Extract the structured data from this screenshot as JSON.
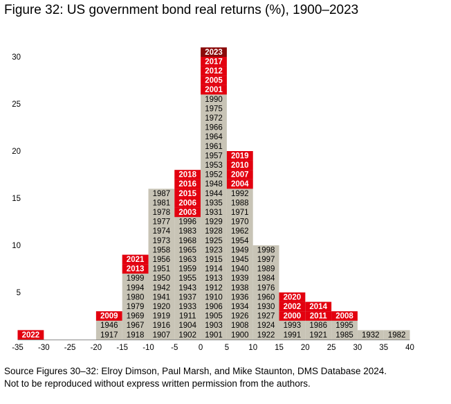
{
  "title": "Figure 32: US government bond real returns (%), 1900–2023",
  "source_lines": [
    "Source Figures 30–32: Elroy Dimson, Paul Marsh, and Mike Staunton, DMS Database 2024.",
    "Not to be reproduced without express written permission from the authors."
  ],
  "colors": {
    "normal": "#c8c4b6",
    "highlight": "#e3000f",
    "latest": "#8b0a0a",
    "normal_text": "#000000",
    "highlight_text": "#ffffff"
  },
  "chart_data": {
    "type": "histogram",
    "x_ticks": [
      -35,
      -30,
      -25,
      -20,
      -15,
      -10,
      -5,
      0,
      5,
      10,
      15,
      20,
      25,
      30,
      35,
      40
    ],
    "y_ticks": [
      5,
      10,
      15,
      20,
      25,
      30
    ],
    "ylim": [
      0,
      32
    ],
    "bin_width": 5,
    "latest_year": "2023",
    "highlight_years": [
      "2000",
      "2001",
      "2002",
      "2003",
      "2004",
      "2005",
      "2006",
      "2007",
      "2008",
      "2009",
      "2010",
      "2011",
      "2012",
      "2013",
      "2014",
      "2015",
      "2016",
      "2017",
      "2018",
      "2019",
      "2020",
      "2021",
      "2022",
      "2023"
    ],
    "bins": [
      {
        "range": [
          -35,
          -30
        ],
        "years": [
          "2022"
        ]
      },
      {
        "range": [
          -20,
          -15
        ],
        "years": [
          "1917",
          "1946",
          "2009"
        ]
      },
      {
        "range": [
          -15,
          -10
        ],
        "years": [
          "1918",
          "1967",
          "1969",
          "1979",
          "1980",
          "1994",
          "1999",
          "2013",
          "2021"
        ]
      },
      {
        "range": [
          -10,
          -5
        ],
        "years": [
          "1907",
          "1916",
          "1919",
          "1920",
          "1941",
          "1942",
          "1950",
          "1951",
          "1956",
          "1958",
          "1973",
          "1974",
          "1977",
          "1978",
          "1981",
          "1987"
        ]
      },
      {
        "range": [
          -5,
          0
        ],
        "years": [
          "1902",
          "1904",
          "1911",
          "1933",
          "1937",
          "1943",
          "1955",
          "1959",
          "1963",
          "1965",
          "1968",
          "1983",
          "1996",
          "2003",
          "2006",
          "2015",
          "2016",
          "2018"
        ]
      },
      {
        "range": [
          0,
          5
        ],
        "years": [
          "1901",
          "1903",
          "1905",
          "1906",
          "1910",
          "1912",
          "1913",
          "1914",
          "1915",
          "1923",
          "1925",
          "1928",
          "1929",
          "1931",
          "1935",
          "1944",
          "1948",
          "1952",
          "1953",
          "1957",
          "1961",
          "1964",
          "1966",
          "1972",
          "1975",
          "1990",
          "2001",
          "2005",
          "2012",
          "2017",
          "2023"
        ]
      },
      {
        "range": [
          5,
          10
        ],
        "years": [
          "1900",
          "1908",
          "1926",
          "1934",
          "1936",
          "1938",
          "1939",
          "1940",
          "1945",
          "1949",
          "1954",
          "1962",
          "1970",
          "1971",
          "1988",
          "1992",
          "2004",
          "2007",
          "2010",
          "2019"
        ]
      },
      {
        "range": [
          10,
          15
        ],
        "years": [
          "1922",
          "1924",
          "1927",
          "1930",
          "1960",
          "1976",
          "1984",
          "1989",
          "1997",
          "1998"
        ]
      },
      {
        "range": [
          15,
          20
        ],
        "years": [
          "1991",
          "1993",
          "2000",
          "2002",
          "2020"
        ]
      },
      {
        "range": [
          20,
          25
        ],
        "years": [
          "1921",
          "1986",
          "2011",
          "2014"
        ]
      },
      {
        "range": [
          25,
          30
        ],
        "years": [
          "1985",
          "1995",
          "2008"
        ]
      },
      {
        "range": [
          30,
          35
        ],
        "years": [
          "1932"
        ]
      },
      {
        "range": [
          35,
          40
        ],
        "years": [
          "1982"
        ]
      }
    ]
  }
}
